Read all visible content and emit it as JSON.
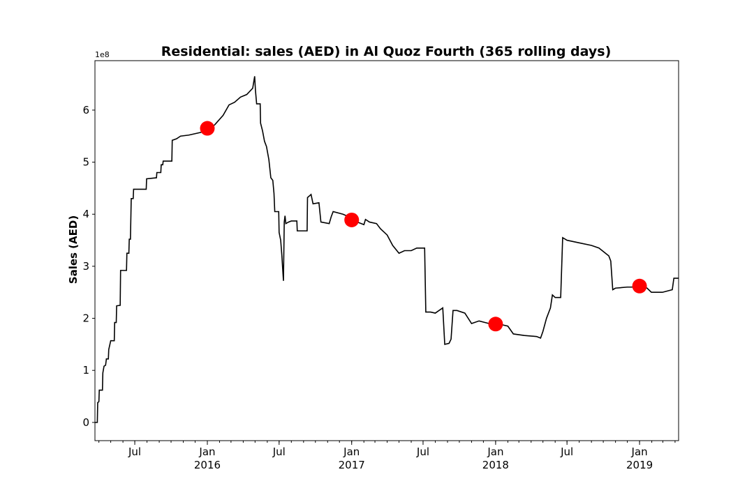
{
  "chart_data": {
    "type": "line",
    "title": "Residential: sales (AED) in Al Quoz Fourth (365 rolling days)",
    "xlabel": "",
    "ylabel": "Sales (AED)",
    "y_offset_label": "1e8",
    "ylim": [
      -0.35,
      6.95
    ],
    "xlim": [
      "2015-03-22",
      "2019-04-10"
    ],
    "y_ticks": [
      0,
      1,
      2,
      3,
      4,
      5,
      6
    ],
    "x_ticks": [
      {
        "date": "2015-07-01",
        "label": "Jul",
        "year": ""
      },
      {
        "date": "2016-01-01",
        "label": "Jan",
        "year": "2016"
      },
      {
        "date": "2016-07-01",
        "label": "Jul",
        "year": ""
      },
      {
        "date": "2017-01-01",
        "label": "Jan",
        "year": "2017"
      },
      {
        "date": "2017-07-01",
        "label": "Jul",
        "year": ""
      },
      {
        "date": "2018-01-01",
        "label": "Jan",
        "year": "2018"
      },
      {
        "date": "2018-07-01",
        "label": "Jul",
        "year": ""
      },
      {
        "date": "2019-01-01",
        "label": "Jan",
        "year": "2019"
      }
    ],
    "grid": false,
    "series": [
      {
        "color": "#000000",
        "points": [
          [
            "2015-03-22",
            0.0
          ],
          [
            "2015-03-28",
            0.0
          ],
          [
            "2015-03-29",
            0.38
          ],
          [
            "2015-04-01",
            0.4
          ],
          [
            "2015-04-02",
            0.62
          ],
          [
            "2015-04-10",
            0.62
          ],
          [
            "2015-04-11",
            0.95
          ],
          [
            "2015-04-14",
            1.08
          ],
          [
            "2015-04-18",
            1.1
          ],
          [
            "2015-04-20",
            1.22
          ],
          [
            "2015-04-25",
            1.22
          ],
          [
            "2015-04-26",
            1.4
          ],
          [
            "2015-05-01",
            1.57
          ],
          [
            "2015-05-10",
            1.57
          ],
          [
            "2015-05-11",
            1.92
          ],
          [
            "2015-05-15",
            1.92
          ],
          [
            "2015-05-16",
            2.24
          ],
          [
            "2015-05-25",
            2.25
          ],
          [
            "2015-05-26",
            2.92
          ],
          [
            "2015-06-10",
            2.92
          ],
          [
            "2015-06-11",
            3.25
          ],
          [
            "2015-06-16",
            3.25
          ],
          [
            "2015-06-17",
            3.52
          ],
          [
            "2015-06-20",
            3.52
          ],
          [
            "2015-06-22",
            4.3
          ],
          [
            "2015-06-27",
            4.3
          ],
          [
            "2015-06-28",
            4.48
          ],
          [
            "2015-07-30",
            4.48
          ],
          [
            "2015-07-31",
            4.68
          ],
          [
            "2015-08-25",
            4.7
          ],
          [
            "2015-08-26",
            4.8
          ],
          [
            "2015-09-05",
            4.8
          ],
          [
            "2015-09-06",
            4.95
          ],
          [
            "2015-09-10",
            4.95
          ],
          [
            "2015-09-11",
            5.02
          ],
          [
            "2015-10-03",
            5.02
          ],
          [
            "2015-10-04",
            5.42
          ],
          [
            "2015-10-15",
            5.45
          ],
          [
            "2015-10-25",
            5.5
          ],
          [
            "2015-11-15",
            5.52
          ],
          [
            "2016-01-01",
            5.6
          ],
          [
            "2016-01-20",
            5.72
          ],
          [
            "2016-02-10",
            5.9
          ],
          [
            "2016-02-25",
            6.1
          ],
          [
            "2016-03-10",
            6.15
          ],
          [
            "2016-03-25",
            6.25
          ],
          [
            "2016-04-10",
            6.3
          ],
          [
            "2016-04-25",
            6.42
          ],
          [
            "2016-04-30",
            6.65
          ],
          [
            "2016-05-02",
            6.38
          ],
          [
            "2016-05-05",
            6.12
          ],
          [
            "2016-05-14",
            6.12
          ],
          [
            "2016-05-15",
            5.75
          ],
          [
            "2016-05-20",
            5.6
          ],
          [
            "2016-05-25",
            5.4
          ],
          [
            "2016-05-30",
            5.3
          ],
          [
            "2016-06-05",
            5.05
          ],
          [
            "2016-06-10",
            4.7
          ],
          [
            "2016-06-15",
            4.65
          ],
          [
            "2016-06-18",
            4.4
          ],
          [
            "2016-06-20",
            4.05
          ],
          [
            "2016-06-30",
            4.05
          ],
          [
            "2016-07-01",
            3.65
          ],
          [
            "2016-07-05",
            3.5
          ],
          [
            "2016-07-08",
            3.2
          ],
          [
            "2016-07-10",
            2.95
          ],
          [
            "2016-07-12",
            2.72
          ],
          [
            "2016-07-14",
            3.85
          ],
          [
            "2016-07-16",
            3.97
          ],
          [
            "2016-07-18",
            3.82
          ],
          [
            "2016-07-25",
            3.85
          ],
          [
            "2016-08-01",
            3.87
          ],
          [
            "2016-08-15",
            3.87
          ],
          [
            "2016-08-16",
            3.68
          ],
          [
            "2016-09-10",
            3.68
          ],
          [
            "2016-09-11",
            4.32
          ],
          [
            "2016-09-20",
            4.38
          ],
          [
            "2016-09-25",
            4.2
          ],
          [
            "2016-10-10",
            4.22
          ],
          [
            "2016-10-15",
            3.85
          ],
          [
            "2016-11-05",
            3.82
          ],
          [
            "2016-11-10",
            3.95
          ],
          [
            "2016-11-15",
            4.05
          ],
          [
            "2016-12-10",
            4.0
          ],
          [
            "2016-12-25",
            3.95
          ],
          [
            "2017-01-15",
            3.85
          ],
          [
            "2017-02-01",
            3.8
          ],
          [
            "2017-02-05",
            3.9
          ],
          [
            "2017-02-15",
            3.85
          ],
          [
            "2017-03-05",
            3.82
          ],
          [
            "2017-03-15",
            3.72
          ],
          [
            "2017-04-01",
            3.6
          ],
          [
            "2017-04-15",
            3.4
          ],
          [
            "2017-05-01",
            3.25
          ],
          [
            "2017-05-15",
            3.3
          ],
          [
            "2017-06-01",
            3.3
          ],
          [
            "2017-06-15",
            3.35
          ],
          [
            "2017-07-05",
            3.35
          ],
          [
            "2017-07-08",
            2.12
          ],
          [
            "2017-07-20",
            2.12
          ],
          [
            "2017-08-01",
            2.1
          ],
          [
            "2017-08-20",
            2.2
          ],
          [
            "2017-08-25",
            1.5
          ],
          [
            "2017-09-05",
            1.52
          ],
          [
            "2017-09-10",
            1.6
          ],
          [
            "2017-09-15",
            2.15
          ],
          [
            "2017-09-25",
            2.15
          ],
          [
            "2017-10-15",
            2.1
          ],
          [
            "2017-11-01",
            1.9
          ],
          [
            "2017-11-20",
            1.95
          ],
          [
            "2017-12-15",
            1.9
          ],
          [
            "2018-01-15",
            1.88
          ],
          [
            "2018-02-01",
            1.85
          ],
          [
            "2018-02-15",
            1.7
          ],
          [
            "2018-03-15",
            1.67
          ],
          [
            "2018-04-15",
            1.65
          ],
          [
            "2018-04-25",
            1.62
          ],
          [
            "2018-05-01",
            1.75
          ],
          [
            "2018-05-10",
            2.0
          ],
          [
            "2018-05-20",
            2.2
          ],
          [
            "2018-05-25",
            2.45
          ],
          [
            "2018-06-01",
            2.4
          ],
          [
            "2018-06-15",
            2.4
          ],
          [
            "2018-06-20",
            3.55
          ],
          [
            "2018-07-01",
            3.5
          ],
          [
            "2018-08-01",
            3.45
          ],
          [
            "2018-09-01",
            3.4
          ],
          [
            "2018-09-20",
            3.35
          ],
          [
            "2018-10-15",
            3.2
          ],
          [
            "2018-10-20",
            3.1
          ],
          [
            "2018-10-25",
            2.55
          ],
          [
            "2018-11-01",
            2.58
          ],
          [
            "2018-12-01",
            2.6
          ],
          [
            "2018-12-20",
            2.6
          ],
          [
            "2019-01-05",
            2.62
          ],
          [
            "2019-01-20",
            2.58
          ],
          [
            "2019-01-31",
            2.5
          ],
          [
            "2019-02-28",
            2.5
          ],
          [
            "2019-03-25",
            2.55
          ],
          [
            "2019-03-29",
            2.77
          ],
          [
            "2019-04-10",
            2.77
          ]
        ]
      }
    ],
    "markers": [
      {
        "date": "2016-01-01",
        "value": 5.65,
        "color": "#ff0000"
      },
      {
        "date": "2017-01-01",
        "value": 3.89,
        "color": "#ff0000"
      },
      {
        "date": "2018-01-01",
        "value": 1.89,
        "color": "#ff0000"
      },
      {
        "date": "2019-01-01",
        "value": 2.62,
        "color": "#ff0000"
      }
    ]
  }
}
